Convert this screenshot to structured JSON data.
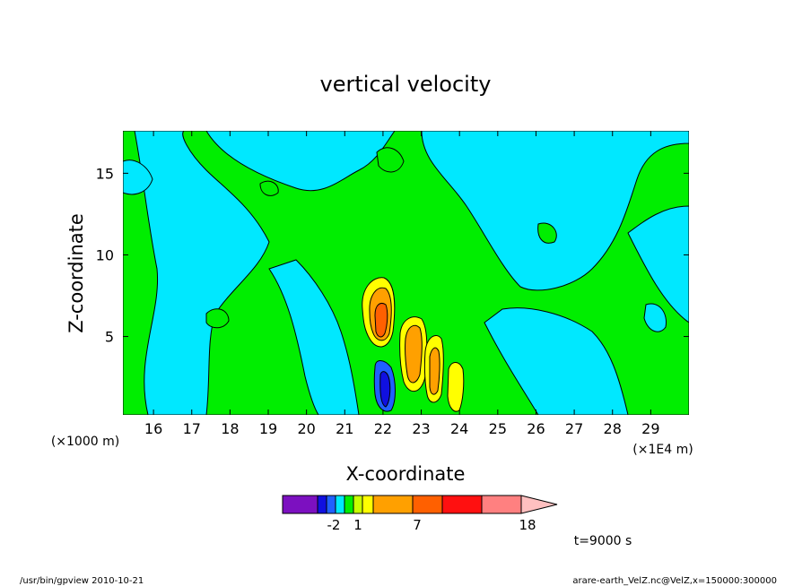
{
  "chart_data": {
    "type": "heatmap",
    "title": "vertical velocity",
    "xlabel": "X-coordinate",
    "ylabel": "Z-coordinate",
    "xlim": [
      15.2,
      30.0
    ],
    "ylim": [
      0.2,
      17.6
    ],
    "x_ticks": [
      "16",
      "17",
      "18",
      "19",
      "20",
      "21",
      "22",
      "23",
      "24",
      "25",
      "26",
      "27",
      "28",
      "29"
    ],
    "y_ticks": [
      "5",
      "10",
      "15"
    ],
    "x_unit": "(×1E4 m)",
    "y_unit": "(×1000 m)",
    "time_label": "t=9000 s",
    "colorbar": {
      "colors": [
        "#7c10c0",
        "#1010e0",
        "#2060ff",
        "#00e8ff",
        "#00ee00",
        "#c8ff00",
        "#ffff00",
        "#ffa000",
        "#ff6000",
        "#ff1010",
        "#ff8080",
        "#ffc0c0"
      ],
      "labels": [
        "-2",
        "1",
        "7",
        "18"
      ]
    },
    "features": [
      {
        "name": "updraft core",
        "x": 21.9,
        "z": 5.8,
        "level": "orange"
      },
      {
        "name": "updraft",
        "x": 22.7,
        "z": 4.2,
        "level": "orange"
      },
      {
        "name": "updraft",
        "x": 23.3,
        "z": 3.0,
        "level": "orange"
      },
      {
        "name": "updraft",
        "x": 23.9,
        "z": 1.8,
        "level": "yellow"
      },
      {
        "name": "downdraft",
        "x": 21.9,
        "z": 2.0,
        "level": "blue"
      }
    ]
  },
  "footer": {
    "left": "/usr/bin/gpview   2010-10-21",
    "right": "arare-earth_VelZ.nc@VelZ,x=150000:300000"
  },
  "colors": {
    "zero": "#00ee00",
    "weak_neg": "#00e8ff"
  }
}
